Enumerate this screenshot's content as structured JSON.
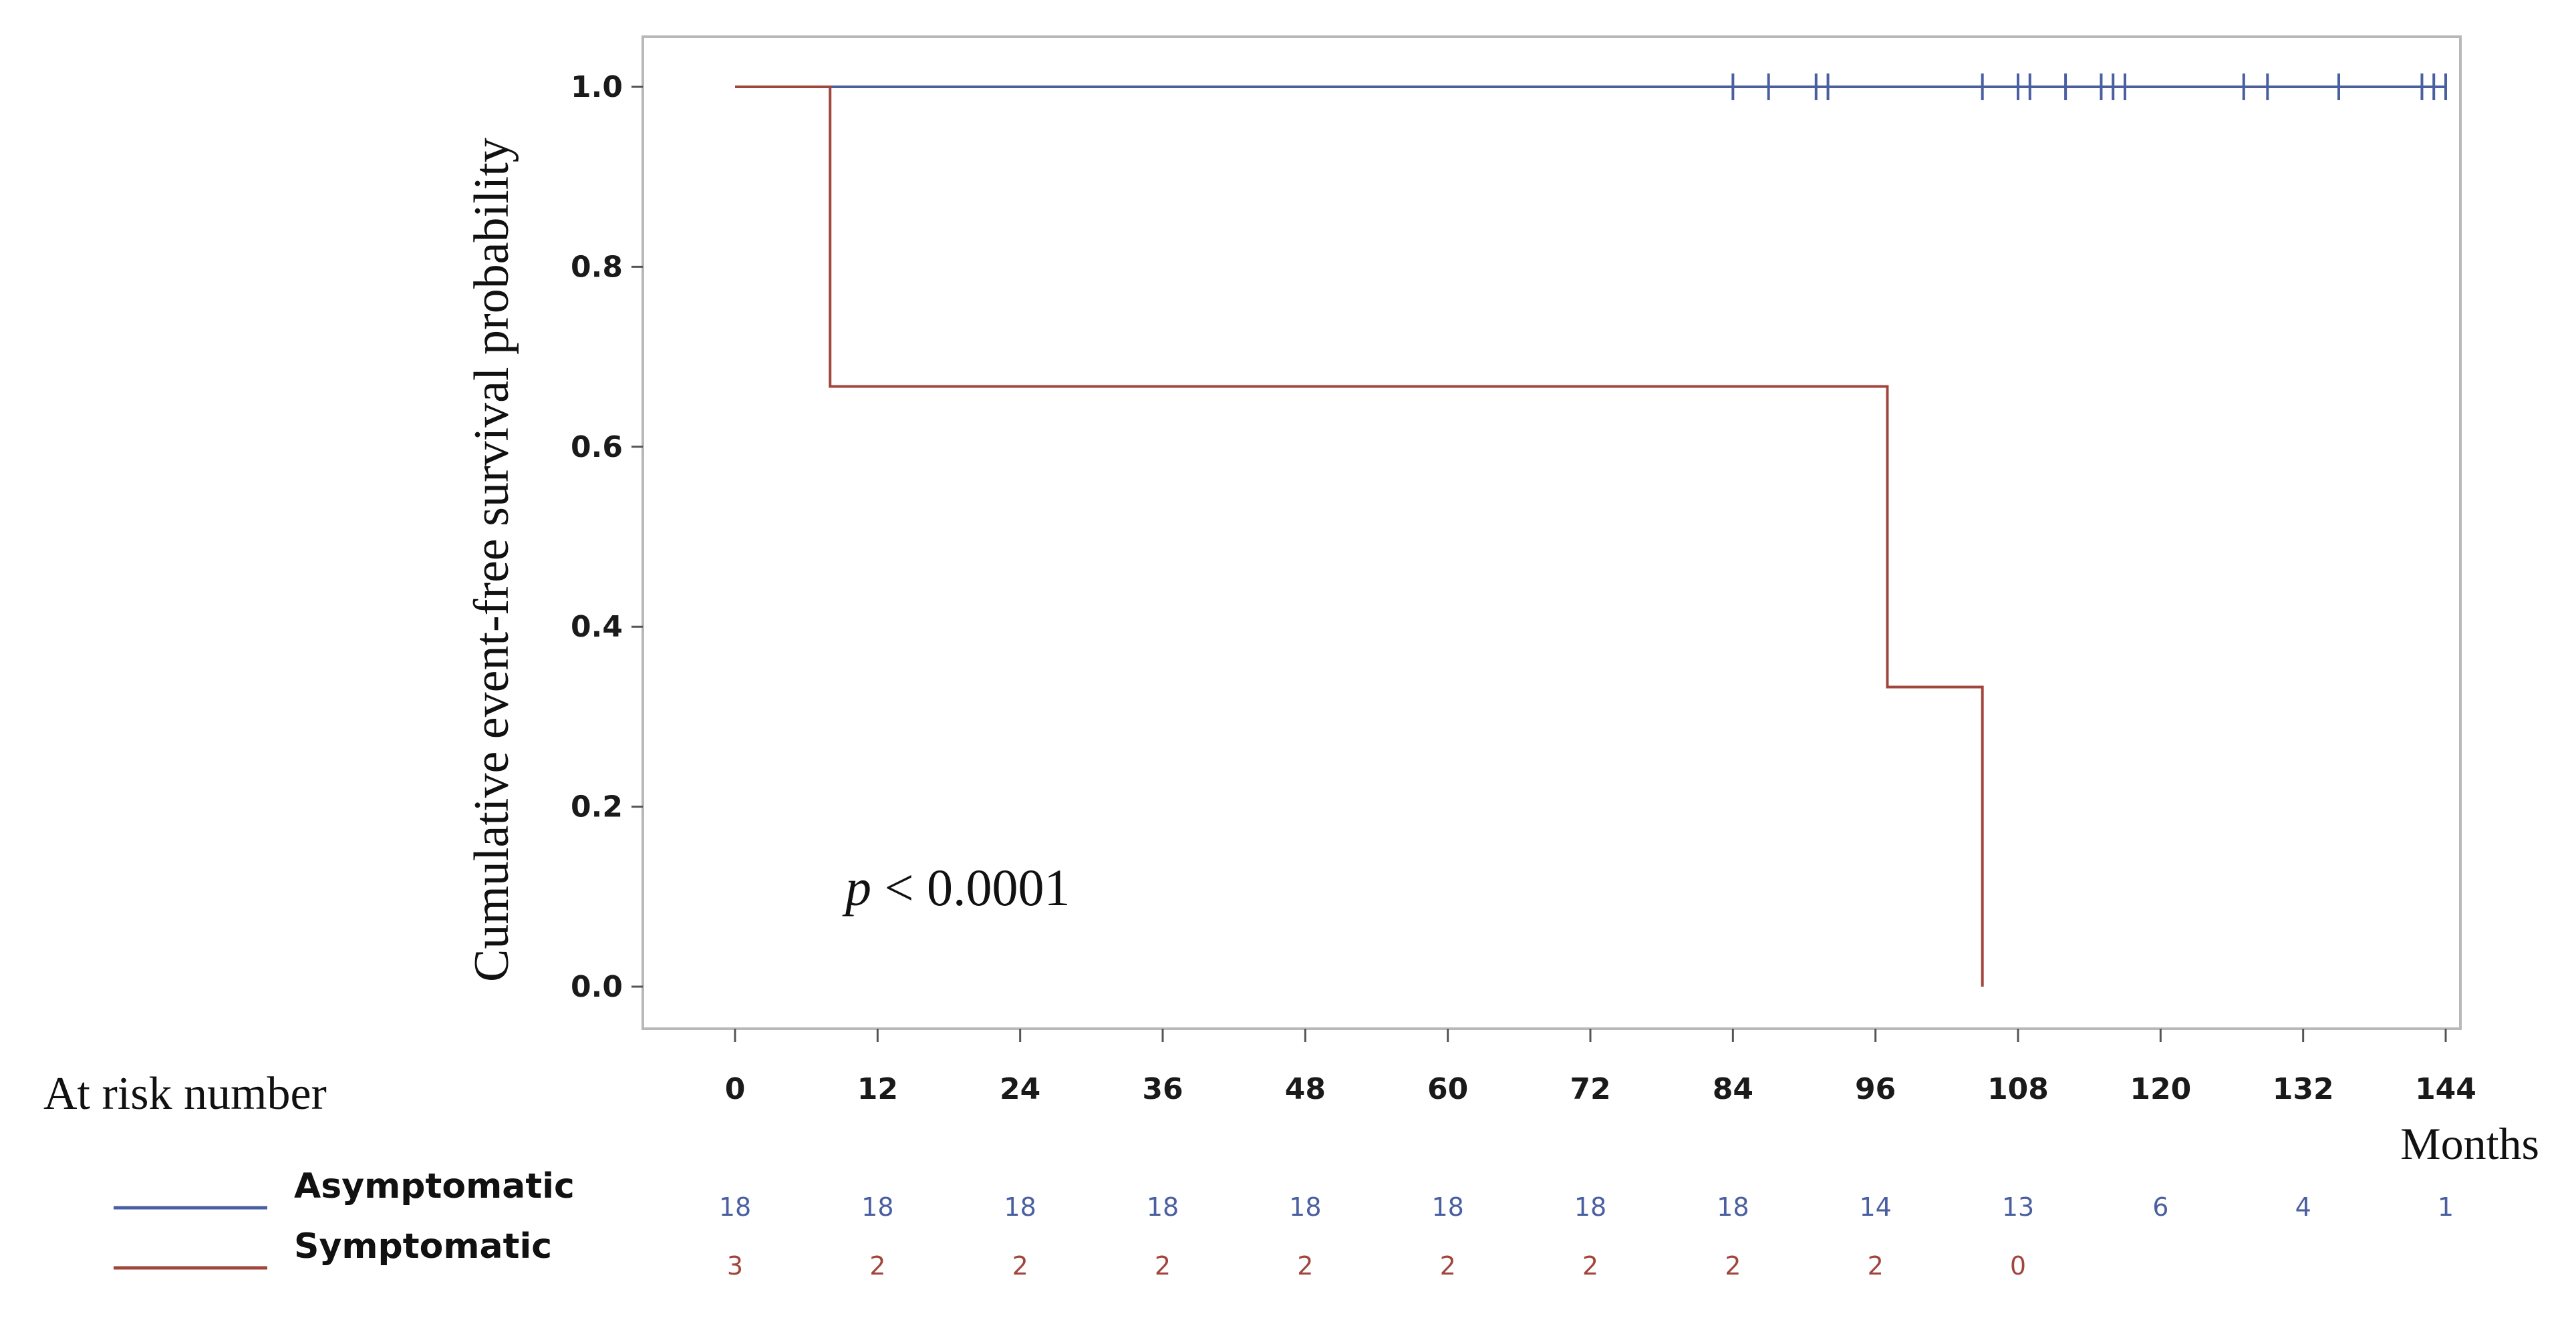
{
  "chart_data": {
    "type": "line",
    "subtype": "kaplan-meier",
    "ylabel": "Cumulative event-free survival probability",
    "xlabel": "Months",
    "ylim": [
      0,
      1
    ],
    "xlim": [
      0,
      144
    ],
    "x_ticks": [
      "0",
      "12",
      "24",
      "36",
      "48",
      "60",
      "72",
      "84",
      "96",
      "108",
      "120",
      "132",
      "144"
    ],
    "y_ticks": [
      "0.0",
      "0.2",
      "0.4",
      "0.6",
      "0.8",
      "1.0"
    ],
    "annotation": {
      "p_symbol": "p",
      "p_text": " < 0.0001"
    },
    "risk_table_title": "At risk number",
    "colors": {
      "asymptomatic": "#4a5fa0",
      "symptomatic": "#a0463c"
    },
    "series": [
      {
        "name": "Asymptomatic",
        "steps": [
          [
            0,
            1.0
          ],
          [
            144,
            1.0
          ]
        ],
        "censor_x": [
          84,
          87,
          91,
          92,
          105,
          108,
          109,
          112,
          115,
          116,
          117,
          127,
          129,
          135,
          142,
          143,
          144
        ],
        "at_risk": [
          "18",
          "18",
          "18",
          "18",
          "18",
          "18",
          "18",
          "18",
          "14",
          "13",
          "6",
          "4",
          "1"
        ]
      },
      {
        "name": "Symptomatic",
        "steps": [
          [
            0,
            1.0
          ],
          [
            8,
            1.0
          ],
          [
            8,
            0.667
          ],
          [
            97,
            0.667
          ],
          [
            97,
            0.333
          ],
          [
            105,
            0.333
          ],
          [
            105,
            0.0
          ]
        ],
        "censor_x": [],
        "at_risk": [
          "3",
          "2",
          "2",
          "2",
          "2",
          "2",
          "2",
          "2",
          "2",
          "0"
        ]
      }
    ]
  }
}
